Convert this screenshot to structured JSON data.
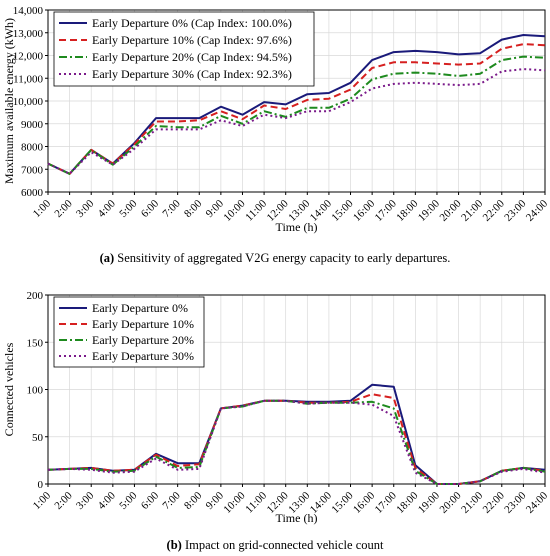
{
  "chart_data": [
    {
      "id": "a",
      "type": "line",
      "xlabel": "Time (h)",
      "ylabel": "Maximum available energy (kWh)",
      "categories": [
        "1:00",
        "2:00",
        "3:00",
        "4:00",
        "5:00",
        "6:00",
        "7:00",
        "8:00",
        "9:00",
        "10:00",
        "11:00",
        "12:00",
        "13:00",
        "14:00",
        "15:00",
        "16:00",
        "17:00",
        "18:00",
        "19:00",
        "20:00",
        "21:00",
        "22:00",
        "23:00",
        "24:00"
      ],
      "ylim": [
        6000,
        14000
      ],
      "yticks": [
        6000,
        7000,
        8000,
        9000,
        10000,
        11000,
        12000,
        13000,
        14000
      ],
      "ytick_labels": [
        "6000",
        "7000",
        "8000",
        "9000",
        "10,000",
        "11,000",
        "12,000",
        "13,000",
        "14,000"
      ],
      "grid": true,
      "legend_position": "top-left",
      "caption_label": "(a)",
      "caption_text": "Sensitivity of aggregated V2G energy capacity to early departures.",
      "series": [
        {
          "name": "Early Departure 0% (Cap Index: 100.0%)",
          "color": "#1a1a7a",
          "dash": "solid",
          "values": [
            7250,
            6800,
            7850,
            7250,
            8150,
            9250,
            9250,
            9250,
            9750,
            9400,
            9950,
            9850,
            10300,
            10350,
            10800,
            11800,
            12150,
            12200,
            12150,
            12050,
            12100,
            12700,
            12900,
            12850
          ]
        },
        {
          "name": "Early Departure 10% (Cap Index: 97.6%)",
          "color": "#d62020",
          "dash": "dashed",
          "values": [
            7250,
            6800,
            7850,
            7250,
            8100,
            9100,
            9100,
            9150,
            9550,
            9200,
            9800,
            9650,
            10050,
            10100,
            10500,
            11450,
            11700,
            11700,
            11650,
            11600,
            11650,
            12300,
            12500,
            12450
          ]
        },
        {
          "name": "Early Departure 20% (Cap Index: 94.5%)",
          "color": "#1e8a1e",
          "dash": "dashdot",
          "values": [
            7250,
            6800,
            7850,
            7200,
            8000,
            8900,
            8850,
            8850,
            9350,
            9000,
            9550,
            9300,
            9700,
            9700,
            10100,
            10950,
            11200,
            11250,
            11200,
            11100,
            11200,
            11800,
            11950,
            11900
          ]
        },
        {
          "name": "Early Departure 30% (Cap Index: 92.3%)",
          "color": "#7a1a8a",
          "dash": "dotted",
          "values": [
            7250,
            6800,
            7750,
            7200,
            7900,
            8750,
            8750,
            8750,
            9150,
            8900,
            9400,
            9250,
            9550,
            9550,
            9950,
            10550,
            10750,
            10800,
            10750,
            10700,
            10750,
            11300,
            11400,
            11350
          ]
        }
      ]
    },
    {
      "id": "b",
      "type": "line",
      "xlabel": "Time (h)",
      "ylabel": "Connected vehicles",
      "categories": [
        "1:00",
        "2:00",
        "3:00",
        "4:00",
        "5:00",
        "6:00",
        "7:00",
        "8:00",
        "9:00",
        "10:00",
        "11:00",
        "12:00",
        "13:00",
        "14:00",
        "15:00",
        "16:00",
        "17:00",
        "18:00",
        "19:00",
        "20:00",
        "21:00",
        "22:00",
        "23:00",
        "24:00"
      ],
      "ylim": [
        0,
        200
      ],
      "yticks": [
        0,
        50,
        100,
        150,
        200
      ],
      "ytick_labels": [
        "0",
        "50",
        "100",
        "150",
        "200"
      ],
      "grid": true,
      "legend_position": "top-left",
      "caption_label": "(b)",
      "caption_text": "Impact on grid-connected vehicle count",
      "series": [
        {
          "name": "Early Departure 0%",
          "color": "#1a1a7a",
          "dash": "solid",
          "values": [
            15,
            16,
            17,
            14,
            15,
            32,
            22,
            22,
            80,
            83,
            88,
            88,
            87,
            87,
            88,
            105,
            103,
            20,
            0,
            0,
            3,
            14,
            17,
            15
          ]
        },
        {
          "name": "Early Departure 10%",
          "color": "#d62020",
          "dash": "dashed",
          "values": [
            15,
            16,
            17,
            14,
            15,
            31,
            19,
            21,
            80,
            83,
            88,
            88,
            86,
            86,
            87,
            95,
            91,
            17,
            0,
            0,
            3,
            14,
            17,
            14
          ]
        },
        {
          "name": "Early Departure 20%",
          "color": "#1e8a1e",
          "dash": "dashdot",
          "values": [
            15,
            16,
            16,
            13,
            14,
            29,
            17,
            18,
            80,
            82,
            88,
            88,
            85,
            86,
            86,
            87,
            80,
            14,
            0,
            0,
            3,
            14,
            17,
            13
          ]
        },
        {
          "name": "Early Departure 30%",
          "color": "#7a1a8a",
          "dash": "dotted",
          "values": [
            15,
            16,
            15,
            12,
            13,
            27,
            15,
            16,
            80,
            82,
            88,
            88,
            85,
            86,
            86,
            84,
            72,
            12,
            0,
            0,
            3,
            13,
            16,
            12
          ]
        }
      ]
    }
  ]
}
